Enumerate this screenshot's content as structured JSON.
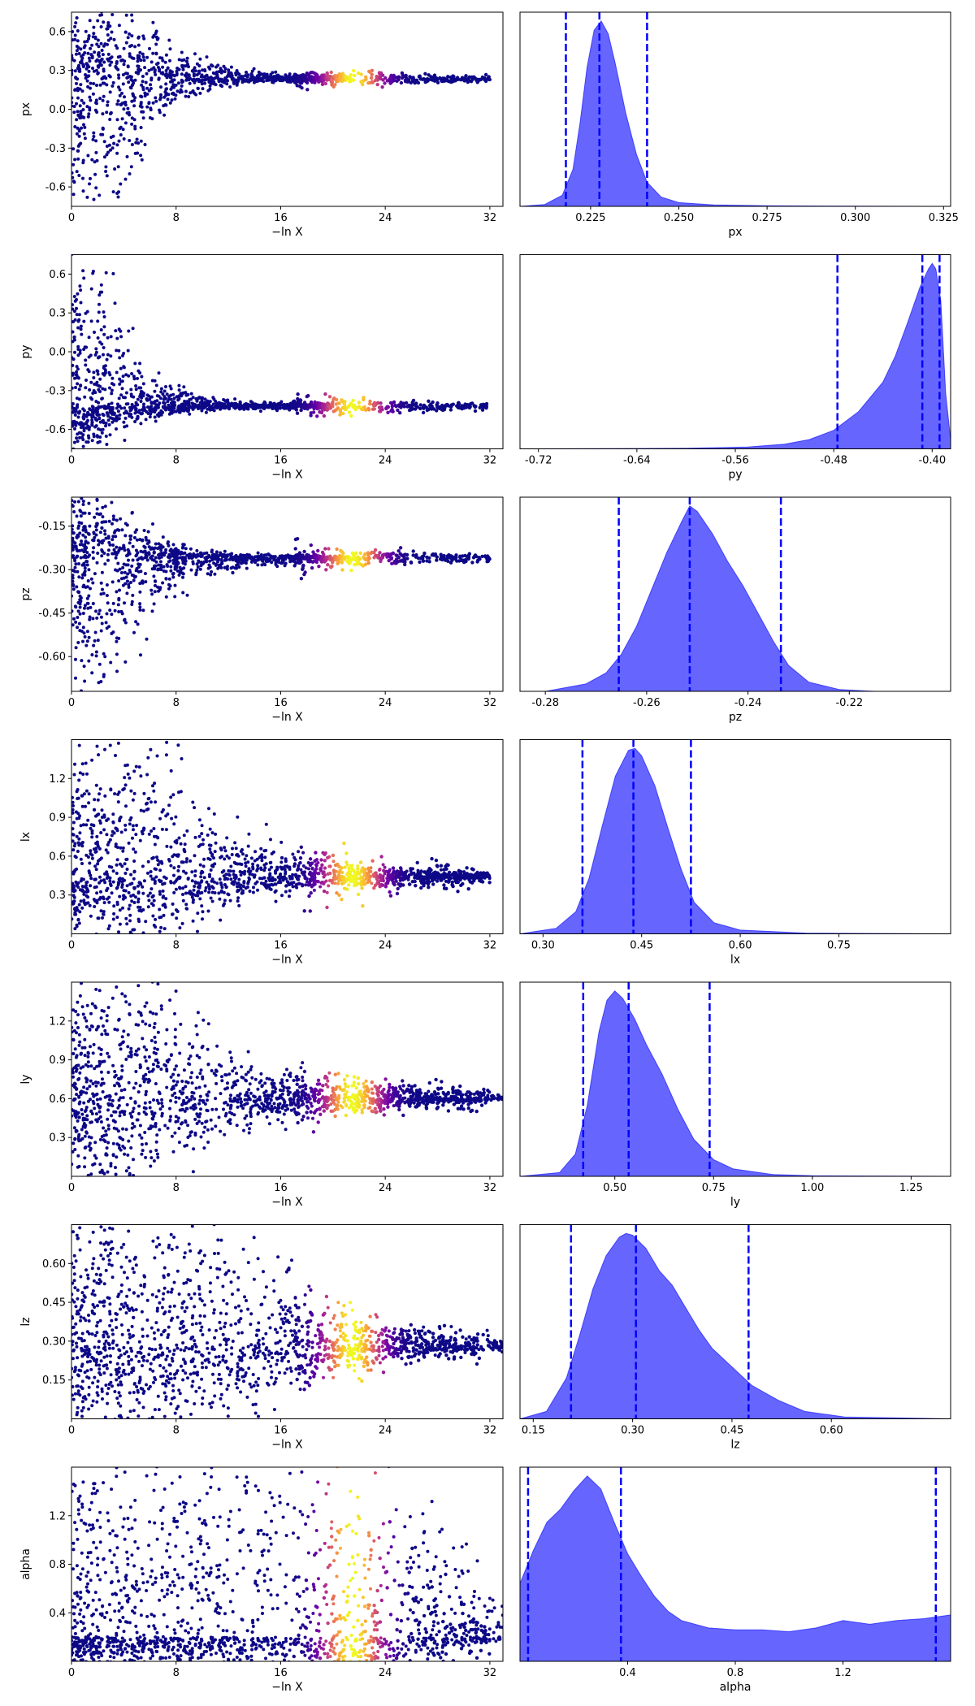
{
  "chart_data": {
    "type": "scatter",
    "trace_xlabel": "−ln X",
    "trace_xticks": [
      0,
      8,
      16,
      24,
      32
    ],
    "trace_xlim": [
      0,
      33
    ],
    "colormap": [
      "#0d0887",
      "#6a00a8",
      "#b12a90",
      "#e16462",
      "#fca636",
      "#f0f921"
    ],
    "kde_fill": "#0000ff",
    "quantile_line": "#0000ff",
    "params": [
      {
        "name": "px",
        "ylabel": "px",
        "trace_ylim": [
          -0.75,
          0.75
        ],
        "trace_yticks": [
          "-0.6",
          "-0.3",
          "0.0",
          "0.3",
          "0.6"
        ],
        "trace_ytick_values": [
          -0.6,
          -0.3,
          0.0,
          0.3,
          0.6
        ],
        "converged": 0.235,
        "spread_top": 0.75,
        "spread_bot": -0.75,
        "narrow_x": 4,
        "conv_x": 19,
        "slope_top": 1.3,
        "slope_bot": 2.2,
        "kde_xlim": [
          0.205,
          0.327
        ],
        "kde_xticks": [
          "0.225",
          "0.250",
          "0.275",
          "0.300",
          "0.325"
        ],
        "kde_xtick_values": [
          0.225,
          0.25,
          0.275,
          0.3,
          0.325
        ],
        "kde_x": [
          0.205,
          0.212,
          0.217,
          0.22,
          0.222,
          0.224,
          0.226,
          0.228,
          0.23,
          0.232,
          0.235,
          0.238,
          0.241,
          0.245,
          0.25,
          0.26,
          0.275,
          0.3,
          0.327
        ],
        "kde_y": [
          0,
          0.01,
          0.06,
          0.2,
          0.45,
          0.75,
          0.95,
          1.0,
          0.93,
          0.77,
          0.5,
          0.28,
          0.13,
          0.05,
          0.02,
          0.008,
          0.003,
          0.001,
          0
        ],
        "quantiles": [
          0.218,
          0.2275,
          0.241
        ]
      },
      {
        "name": "py",
        "ylabel": "py",
        "trace_ylim": [
          -0.75,
          0.75
        ],
        "trace_yticks": [
          "-0.6",
          "-0.3",
          "0.0",
          "0.3",
          "0.6"
        ],
        "trace_ytick_values": [
          -0.6,
          -0.3,
          0.0,
          0.3,
          0.6
        ],
        "converged": -0.42,
        "spread_top": 0.75,
        "spread_bot": -0.75,
        "narrow_x": 1.5,
        "conv_x": 18,
        "slope_top": 2.0,
        "slope_bot": 2.0,
        "kde_xlim": [
          -0.735,
          -0.385
        ],
        "kde_xticks": [
          "-0.72",
          "-0.64",
          "-0.56",
          "-0.48",
          "-0.40"
        ],
        "kde_xtick_values": [
          -0.72,
          -0.64,
          -0.56,
          -0.48,
          -0.4
        ],
        "kde_x": [
          -0.735,
          -0.6,
          -0.55,
          -0.52,
          -0.5,
          -0.48,
          -0.46,
          -0.44,
          -0.43,
          -0.42,
          -0.41,
          -0.403,
          -0.4,
          -0.397,
          -0.393,
          -0.389,
          -0.385
        ],
        "kde_y": [
          0,
          0.003,
          0.01,
          0.025,
          0.05,
          0.1,
          0.2,
          0.36,
          0.5,
          0.68,
          0.87,
          0.97,
          1.0,
          0.97,
          0.8,
          0.3,
          0.05
        ],
        "quantiles": [
          -0.477,
          -0.408,
          -0.394
        ]
      },
      {
        "name": "pz",
        "ylabel": "pz",
        "trace_ylim": [
          -0.72,
          -0.05
        ],
        "trace_yticks": [
          "-0.60",
          "-0.45",
          "-0.30",
          "-0.15"
        ],
        "trace_ytick_values": [
          -0.6,
          -0.45,
          -0.3,
          -0.15
        ],
        "converged": -0.26,
        "spread_top": -0.05,
        "spread_bot": -0.72,
        "narrow_x": 2.5,
        "conv_x": 20,
        "slope_top": 2.0,
        "slope_bot": 1.6,
        "kde_xlim": [
          -0.285,
          -0.2
        ],
        "kde_xticks": [
          "-0.28",
          "-0.26",
          "-0.24",
          "-0.22"
        ],
        "kde_xtick_values": [
          -0.28,
          -0.26,
          -0.24,
          -0.22
        ],
        "kde_x": [
          -0.28,
          -0.272,
          -0.268,
          -0.265,
          -0.262,
          -0.259,
          -0.256,
          -0.253,
          -0.2515,
          -0.25,
          -0.247,
          -0.244,
          -0.241,
          -0.238,
          -0.235,
          -0.232,
          -0.228,
          -0.222,
          -0.215
        ],
        "kde_y": [
          0,
          0.04,
          0.1,
          0.2,
          0.35,
          0.55,
          0.75,
          0.92,
          1.0,
          0.97,
          0.85,
          0.7,
          0.57,
          0.42,
          0.27,
          0.14,
          0.05,
          0.01,
          0
        ],
        "quantiles": [
          -0.2655,
          -0.2515,
          -0.2335
        ]
      },
      {
        "name": "lx",
        "ylabel": "lx",
        "trace_ylim": [
          0.0,
          1.5
        ],
        "trace_yticks": [
          "0.3",
          "0.6",
          "0.9",
          "1.2"
        ],
        "trace_ytick_values": [
          0.3,
          0.6,
          0.9,
          1.2
        ],
        "converged": 0.44,
        "spread_top": 1.5,
        "spread_bot": 0.0,
        "narrow_x": 6,
        "conv_x": 30,
        "slope_top": 1.4,
        "slope_bot": 1.2,
        "kde_xlim": [
          0.265,
          0.92
        ],
        "kde_xticks": [
          "0.30",
          "0.45",
          "0.60",
          "0.75"
        ],
        "kde_xtick_values": [
          0.3,
          0.45,
          0.6,
          0.75
        ],
        "kde_x": [
          0.265,
          0.32,
          0.35,
          0.37,
          0.39,
          0.41,
          0.43,
          0.44,
          0.45,
          0.47,
          0.49,
          0.51,
          0.53,
          0.56,
          0.6,
          0.7,
          0.92
        ],
        "kde_y": [
          0,
          0.03,
          0.12,
          0.3,
          0.58,
          0.85,
          0.99,
          1.0,
          0.96,
          0.8,
          0.57,
          0.35,
          0.17,
          0.06,
          0.02,
          0.004,
          0
        ],
        "quantiles": [
          0.36,
          0.4375,
          0.525
        ]
      },
      {
        "name": "ly",
        "ylabel": "ly",
        "trace_ylim": [
          0.0,
          1.5
        ],
        "trace_yticks": [
          "0.3",
          "0.6",
          "0.9",
          "1.2"
        ],
        "trace_ytick_values": [
          0.3,
          0.6,
          0.9,
          1.2
        ],
        "converged": 0.6,
        "spread_top": 1.5,
        "spread_bot": 0.0,
        "narrow_x": 5,
        "conv_x": 31,
        "slope_top": 1.2,
        "slope_bot": 1.3,
        "kde_xlim": [
          0.26,
          1.35
        ],
        "kde_xticks": [
          "0.50",
          "0.75",
          "1.00",
          "1.25"
        ],
        "kde_xtick_values": [
          0.5,
          0.75,
          1.0,
          1.25
        ],
        "kde_x": [
          0.26,
          0.36,
          0.4,
          0.43,
          0.46,
          0.48,
          0.5,
          0.52,
          0.55,
          0.58,
          0.62,
          0.66,
          0.7,
          0.75,
          0.8,
          0.9,
          1.0,
          1.35
        ],
        "kde_y": [
          0,
          0.02,
          0.12,
          0.38,
          0.78,
          0.95,
          1.0,
          0.96,
          0.85,
          0.71,
          0.55,
          0.36,
          0.2,
          0.09,
          0.04,
          0.01,
          0.003,
          0
        ],
        "quantiles": [
          0.42,
          0.535,
          0.74
        ]
      },
      {
        "name": "lz",
        "ylabel": "lz",
        "trace_ylim": [
          0.0,
          0.75
        ],
        "trace_yticks": [
          "0.15",
          "0.30",
          "0.45",
          "0.60"
        ],
        "trace_ytick_values": [
          0.15,
          0.3,
          0.45,
          0.6
        ],
        "converged": 0.28,
        "spread_top": 0.75,
        "spread_bot": 0.0,
        "narrow_x": 12,
        "conv_x": 33,
        "slope_top": 1.0,
        "slope_bot": 1.1,
        "kde_xlim": [
          0.13,
          0.78
        ],
        "kde_xticks": [
          "0.15",
          "0.30",
          "0.45",
          "0.60"
        ],
        "kde_xtick_values": [
          0.15,
          0.3,
          0.45,
          0.6
        ],
        "kde_x": [
          0.13,
          0.17,
          0.2,
          0.22,
          0.24,
          0.26,
          0.28,
          0.29,
          0.3,
          0.32,
          0.34,
          0.36,
          0.38,
          0.4,
          0.42,
          0.45,
          0.48,
          0.52,
          0.56,
          0.62,
          0.78
        ],
        "kde_y": [
          0,
          0.04,
          0.22,
          0.45,
          0.7,
          0.88,
          0.98,
          1.0,
          0.99,
          0.92,
          0.8,
          0.72,
          0.6,
          0.48,
          0.38,
          0.28,
          0.18,
          0.1,
          0.04,
          0.01,
          0
        ],
        "quantiles": [
          0.207,
          0.305,
          0.475
        ]
      },
      {
        "name": "alpha",
        "ylabel": "alpha",
        "trace_ylim": [
          0.0,
          1.6
        ],
        "trace_yticks": [
          "0.4",
          "0.8",
          "1.2"
        ],
        "trace_ytick_values": [
          0.4,
          0.8,
          1.2
        ],
        "converged": 0.2,
        "spread_top": 1.6,
        "spread_bot": 0.0,
        "narrow_x": 26,
        "conv_x": 34,
        "slope_top": 0.6,
        "slope_bot": 1.0,
        "kde_xlim": [
          0.0,
          1.6
        ],
        "kde_xticks": [
          "0.4",
          "0.8",
          "1.2"
        ],
        "kde_xtick_values": [
          0.4,
          0.8,
          1.2
        ],
        "kde_x": [
          0.0,
          0.05,
          0.1,
          0.15,
          0.2,
          0.25,
          0.3,
          0.35,
          0.4,
          0.45,
          0.5,
          0.55,
          0.6,
          0.7,
          0.8,
          0.9,
          1.0,
          1.1,
          1.2,
          1.3,
          1.4,
          1.5,
          1.6
        ],
        "kde_y": [
          0.42,
          0.6,
          0.75,
          0.82,
          0.92,
          1.0,
          0.93,
          0.75,
          0.58,
          0.46,
          0.35,
          0.27,
          0.22,
          0.18,
          0.17,
          0.17,
          0.16,
          0.18,
          0.22,
          0.2,
          0.22,
          0.23,
          0.25
        ],
        "quantiles": [
          0.03,
          0.375,
          1.545
        ]
      }
    ]
  }
}
